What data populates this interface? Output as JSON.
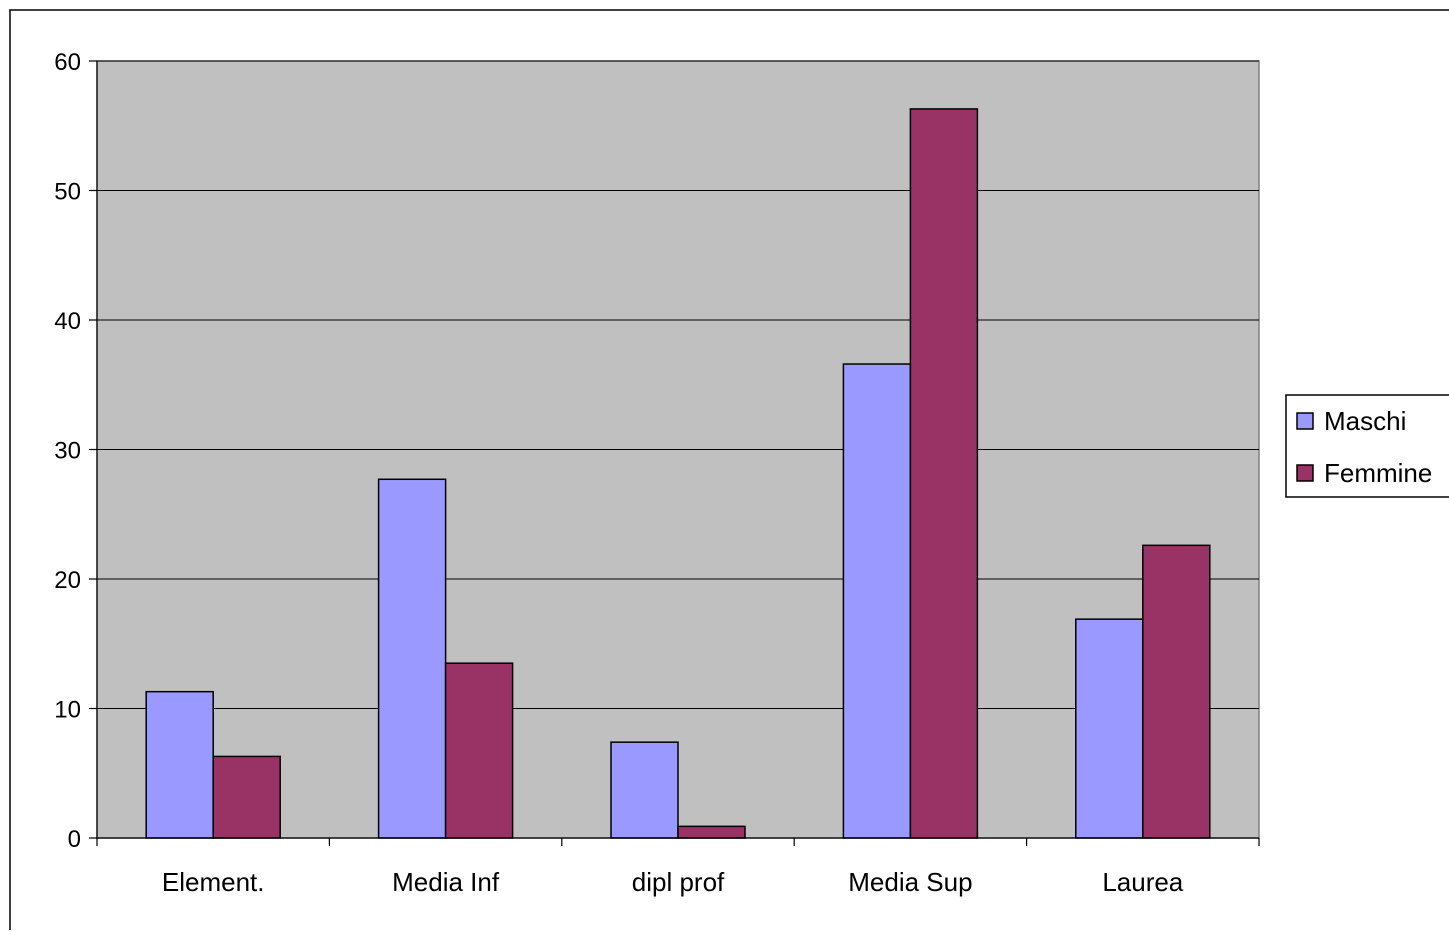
{
  "chart_data": {
    "type": "bar",
    "title": "",
    "xlabel": "",
    "ylabel": "",
    "categories": [
      "Element.",
      "Media Inf",
      "dipl prof",
      "Media Sup",
      "Laurea"
    ],
    "series": [
      {
        "name": "Maschi",
        "values": [
          11.3,
          27.7,
          7.4,
          36.6,
          16.9
        ],
        "color": "#9999ff"
      },
      {
        "name": "Femmine",
        "values": [
          6.3,
          13.5,
          0.9,
          56.3,
          22.6
        ],
        "color": "#993366"
      }
    ],
    "ylim": [
      0,
      60
    ],
    "yticks": [
      0,
      10,
      20,
      30,
      40,
      50,
      60
    ],
    "grid": true,
    "plot_background": "#c0c0c0",
    "legend_position": "right"
  }
}
